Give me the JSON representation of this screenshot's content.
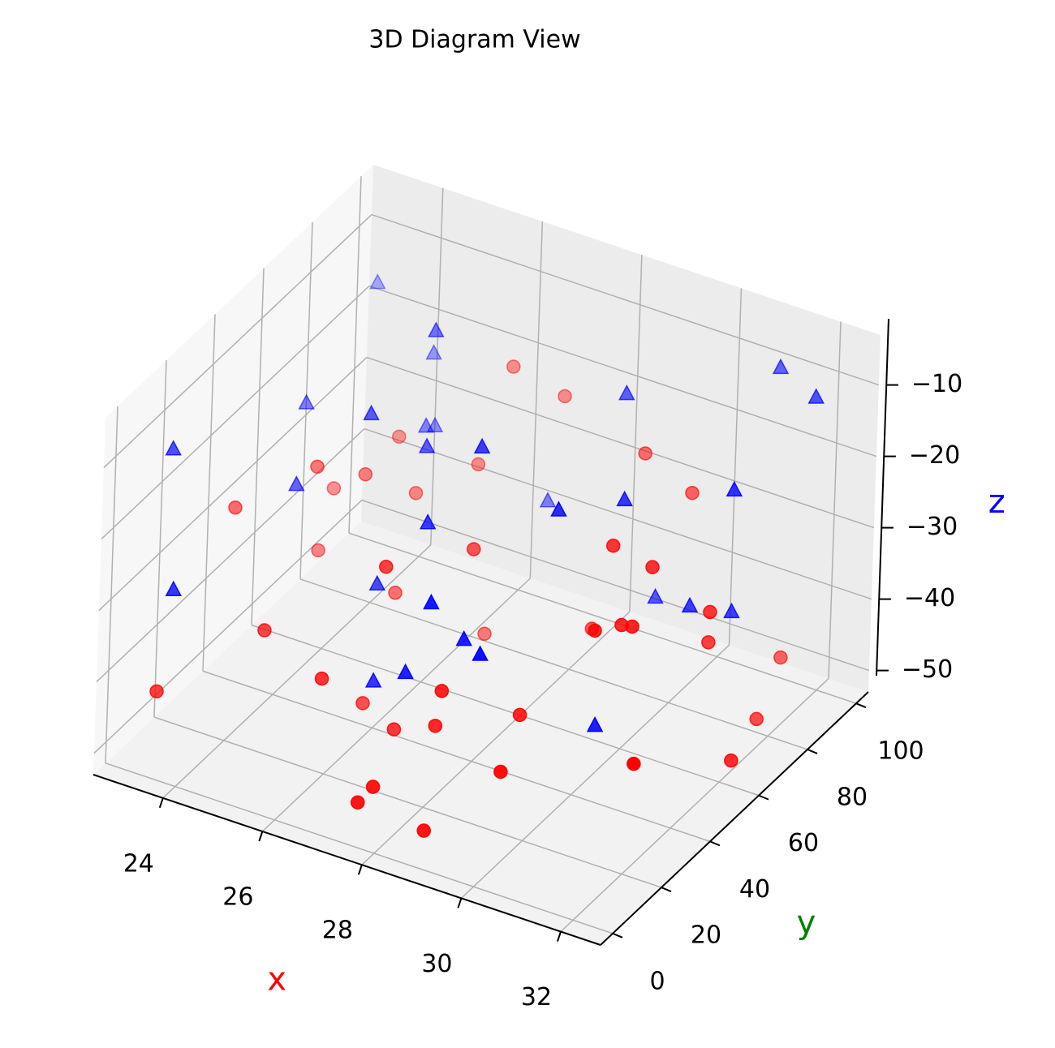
{
  "chart_data": {
    "type": "scatter3d",
    "title": "3D Diagram View",
    "xlabel": "x",
    "xlabel_color": "#ff0000",
    "ylabel": "y",
    "ylabel_color": "#008000",
    "zlabel": "z",
    "zlabel_color": "#0000ff",
    "xlim": [
      22.6,
      32.8
    ],
    "ylim": [
      -5,
      105
    ],
    "zlim": [
      -53,
      -3
    ],
    "xticks": [
      24,
      26,
      28,
      30,
      32
    ],
    "yticks": [
      0,
      20,
      40,
      60,
      80,
      100
    ],
    "zticks": [
      {
        "value": -50,
        "label": "−50"
      },
      {
        "value": -40,
        "label": "−40"
      },
      {
        "value": -30,
        "label": "−30"
      },
      {
        "value": -20,
        "label": "−20"
      },
      {
        "value": -10,
        "label": "−10"
      }
    ],
    "grid": true,
    "depth_shade": true,
    "series": [
      {
        "color": "#ff0000",
        "marker": "circle",
        "x": [
          23.1,
          24.5,
          25.8,
          27.2,
          28.9,
          30.1,
          31.5,
          32.4,
          23.8,
          26.3,
          29.4,
          31.0,
          24.0,
          27.7,
          30.6,
          25.2,
          28.3,
          32.0,
          22.9,
          26.8,
          29.9,
          31.8,
          24.7,
          27.0,
          30.3,
          25.5,
          28.6,
          31.2,
          23.5,
          26.0,
          29.0,
          32.6,
          24.2,
          27.5,
          30.8,
          25.9,
          28.1,
          31.6,
          23.3,
          26.5
        ],
        "y": [
          10,
          25,
          40,
          55,
          70,
          85,
          95,
          15,
          60,
          80,
          30,
          50,
          90,
          5,
          35,
          65,
          20,
          75,
          45,
          100,
          12,
          58,
          83,
          28,
          48,
          92,
          8,
          38,
          68,
          18,
          88,
          52,
          72,
          3,
          42,
          97,
          22,
          62,
          78,
          33
        ],
        "z": [
          -45,
          -38,
          -50,
          -30,
          -42,
          -25,
          -48,
          -35,
          -28,
          -52,
          -40,
          -22,
          -33,
          -46,
          -27,
          -44,
          -36,
          -49,
          -31,
          -24,
          -41,
          -29,
          -37,
          -47,
          -20,
          -34,
          -51,
          -26,
          -43,
          -39,
          -23,
          -46,
          -32,
          -48,
          -28,
          -21,
          -42,
          -35,
          -38,
          -27
        ]
      },
      {
        "color": "#0000ff",
        "marker": "triangle",
        "x": [
          22.8,
          24.1,
          25.6,
          27.0,
          28.5,
          29.8,
          31.3,
          32.5,
          23.6,
          26.2,
          29.2,
          30.9,
          24.4,
          27.8,
          30.4,
          25.0,
          28.0,
          31.9,
          23.0,
          26.7,
          29.6,
          32.2,
          24.8,
          27.3,
          30.0,
          25.4,
          28.8,
          31.4,
          23.4,
          26.1
        ],
        "y": [
          20,
          45,
          70,
          90,
          10,
          35,
          60,
          85,
          5,
          55,
          75,
          30,
          95,
          15,
          50,
          80,
          40,
          65,
          100,
          25,
          8,
          58,
          88,
          33,
          73,
          48,
          18,
          93,
          63,
          38
        ],
        "z": [
          -15,
          -25,
          -8,
          -35,
          -20,
          -12,
          -30,
          -6,
          -28,
          -18,
          -10,
          -38,
          -22,
          -33,
          -14,
          -26,
          -9,
          -31,
          -17,
          -40,
          -24,
          -11,
          -29,
          -19,
          -36,
          -13,
          -27,
          -7,
          -21,
          -32
        ]
      }
    ]
  }
}
